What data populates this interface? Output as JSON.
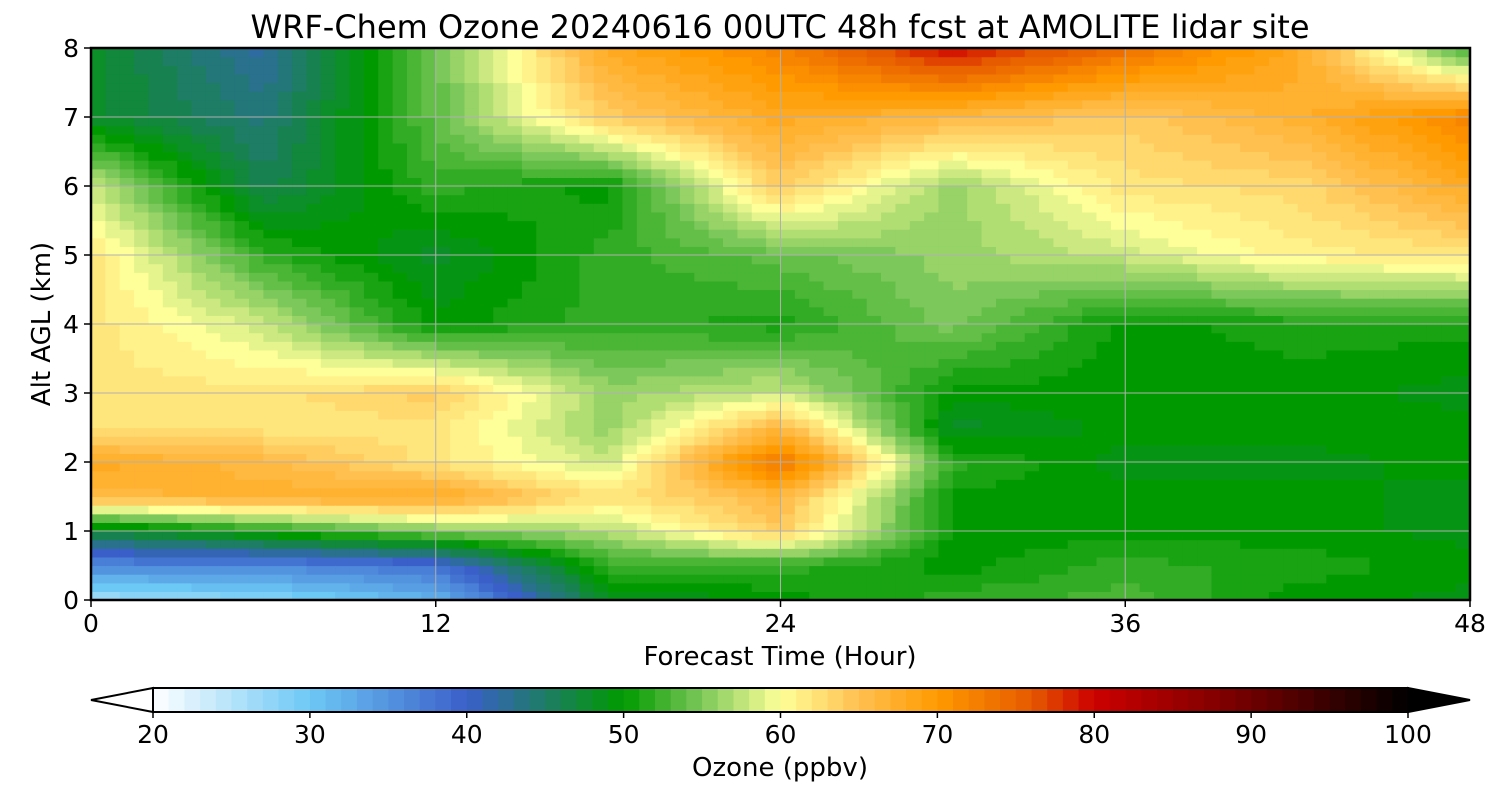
{
  "chart_data": {
    "type": "heatmap",
    "title": "WRF-Chem Ozone  20240616 00UTC 48h fcst at AMOLITE lidar site",
    "xlabel": "Forecast Time (Hour)",
    "ylabel": "Alt AGL (km)",
    "xlim": [
      0,
      48
    ],
    "ylim": [
      0,
      8
    ],
    "x_ticks": [
      "0",
      "12",
      "24",
      "36",
      "48"
    ],
    "y_ticks": [
      "0",
      "1",
      "2",
      "3",
      "4",
      "5",
      "6",
      "7",
      "8"
    ],
    "grid": true,
    "colorbar": {
      "label": "Ozone  (ppbv)",
      "range": [
        20,
        100
      ],
      "extend": "both",
      "ticks": [
        "20",
        "30",
        "40",
        "50",
        "60",
        "70",
        "80",
        "90",
        "100"
      ]
    },
    "x_hours": [
      0,
      6,
      12,
      18,
      24,
      30,
      36,
      42,
      48
    ],
    "y_km": [
      0,
      0.5,
      1,
      1.5,
      2,
      2.5,
      3,
      4,
      5,
      6,
      7,
      8
    ],
    "ozone_ppbv": [
      [
        26,
        28,
        32,
        48,
        50,
        52,
        53,
        50,
        49
      ],
      [
        36,
        36,
        38,
        52,
        52,
        50,
        52,
        51,
        50
      ],
      [
        47,
        51,
        55,
        57,
        64,
        50,
        50,
        50,
        49
      ],
      [
        66,
        67,
        68,
        62,
        66,
        50,
        50,
        50,
        49
      ],
      [
        68,
        66,
        62,
        58,
        74,
        52,
        49,
        49,
        50
      ],
      [
        62,
        62,
        62,
        56,
        66,
        48,
        50,
        50,
        50
      ],
      [
        62,
        62,
        64,
        56,
        58,
        50,
        50,
        50,
        49
      ],
      [
        62,
        58,
        50,
        52,
        51,
        55,
        50,
        51,
        51
      ],
      [
        62,
        52,
        48,
        52,
        54,
        56,
        58,
        61,
        62
      ],
      [
        58,
        46,
        52,
        50,
        64,
        56,
        62,
        63,
        68
      ],
      [
        48,
        44,
        54,
        64,
        68,
        66,
        64,
        67,
        72
      ],
      [
        48,
        42,
        54,
        68,
        72,
        80,
        74,
        68,
        52
      ]
    ]
  }
}
